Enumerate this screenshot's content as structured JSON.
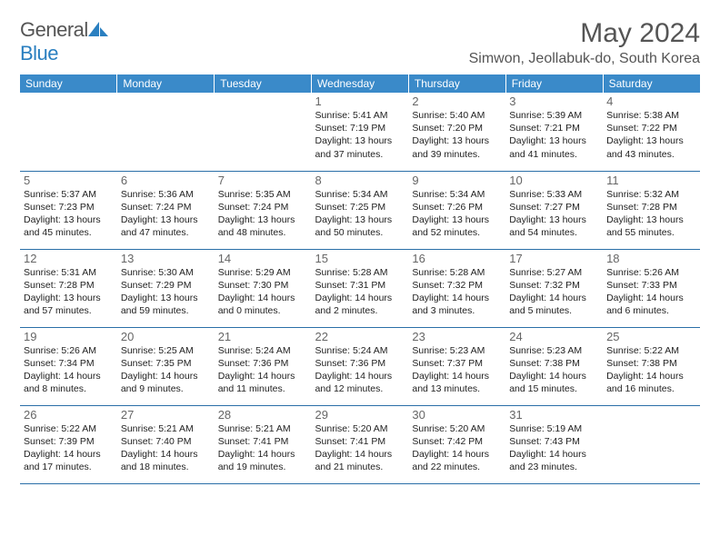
{
  "logo": {
    "part1": "General",
    "part2": "Blue"
  },
  "header": {
    "month_title": "May 2024",
    "location": "Simwon, Jeollabuk-do, South Korea"
  },
  "colors": {
    "header_bg": "#3a8ac9",
    "header_text": "#ffffff",
    "rule": "#2a6fa8",
    "title_color": "#555555",
    "text_color": "#222222",
    "daynum_color": "#666666"
  },
  "weekdays": [
    "Sunday",
    "Monday",
    "Tuesday",
    "Wednesday",
    "Thursday",
    "Friday",
    "Saturday"
  ],
  "weeks": [
    [
      {
        "empty": true
      },
      {
        "empty": true
      },
      {
        "empty": true
      },
      {
        "n": "1",
        "sr": "5:41 AM",
        "ss": "7:19 PM",
        "dl": "13 hours and 37 minutes."
      },
      {
        "n": "2",
        "sr": "5:40 AM",
        "ss": "7:20 PM",
        "dl": "13 hours and 39 minutes."
      },
      {
        "n": "3",
        "sr": "5:39 AM",
        "ss": "7:21 PM",
        "dl": "13 hours and 41 minutes."
      },
      {
        "n": "4",
        "sr": "5:38 AM",
        "ss": "7:22 PM",
        "dl": "13 hours and 43 minutes."
      }
    ],
    [
      {
        "n": "5",
        "sr": "5:37 AM",
        "ss": "7:23 PM",
        "dl": "13 hours and 45 minutes."
      },
      {
        "n": "6",
        "sr": "5:36 AM",
        "ss": "7:24 PM",
        "dl": "13 hours and 47 minutes."
      },
      {
        "n": "7",
        "sr": "5:35 AM",
        "ss": "7:24 PM",
        "dl": "13 hours and 48 minutes."
      },
      {
        "n": "8",
        "sr": "5:34 AM",
        "ss": "7:25 PM",
        "dl": "13 hours and 50 minutes."
      },
      {
        "n": "9",
        "sr": "5:34 AM",
        "ss": "7:26 PM",
        "dl": "13 hours and 52 minutes."
      },
      {
        "n": "10",
        "sr": "5:33 AM",
        "ss": "7:27 PM",
        "dl": "13 hours and 54 minutes."
      },
      {
        "n": "11",
        "sr": "5:32 AM",
        "ss": "7:28 PM",
        "dl": "13 hours and 55 minutes."
      }
    ],
    [
      {
        "n": "12",
        "sr": "5:31 AM",
        "ss": "7:28 PM",
        "dl": "13 hours and 57 minutes."
      },
      {
        "n": "13",
        "sr": "5:30 AM",
        "ss": "7:29 PM",
        "dl": "13 hours and 59 minutes."
      },
      {
        "n": "14",
        "sr": "5:29 AM",
        "ss": "7:30 PM",
        "dl": "14 hours and 0 minutes."
      },
      {
        "n": "15",
        "sr": "5:28 AM",
        "ss": "7:31 PM",
        "dl": "14 hours and 2 minutes."
      },
      {
        "n": "16",
        "sr": "5:28 AM",
        "ss": "7:32 PM",
        "dl": "14 hours and 3 minutes."
      },
      {
        "n": "17",
        "sr": "5:27 AM",
        "ss": "7:32 PM",
        "dl": "14 hours and 5 minutes."
      },
      {
        "n": "18",
        "sr": "5:26 AM",
        "ss": "7:33 PM",
        "dl": "14 hours and 6 minutes."
      }
    ],
    [
      {
        "n": "19",
        "sr": "5:26 AM",
        "ss": "7:34 PM",
        "dl": "14 hours and 8 minutes."
      },
      {
        "n": "20",
        "sr": "5:25 AM",
        "ss": "7:35 PM",
        "dl": "14 hours and 9 minutes."
      },
      {
        "n": "21",
        "sr": "5:24 AM",
        "ss": "7:36 PM",
        "dl": "14 hours and 11 minutes."
      },
      {
        "n": "22",
        "sr": "5:24 AM",
        "ss": "7:36 PM",
        "dl": "14 hours and 12 minutes."
      },
      {
        "n": "23",
        "sr": "5:23 AM",
        "ss": "7:37 PM",
        "dl": "14 hours and 13 minutes."
      },
      {
        "n": "24",
        "sr": "5:23 AM",
        "ss": "7:38 PM",
        "dl": "14 hours and 15 minutes."
      },
      {
        "n": "25",
        "sr": "5:22 AM",
        "ss": "7:38 PM",
        "dl": "14 hours and 16 minutes."
      }
    ],
    [
      {
        "n": "26",
        "sr": "5:22 AM",
        "ss": "7:39 PM",
        "dl": "14 hours and 17 minutes."
      },
      {
        "n": "27",
        "sr": "5:21 AM",
        "ss": "7:40 PM",
        "dl": "14 hours and 18 minutes."
      },
      {
        "n": "28",
        "sr": "5:21 AM",
        "ss": "7:41 PM",
        "dl": "14 hours and 19 minutes."
      },
      {
        "n": "29",
        "sr": "5:20 AM",
        "ss": "7:41 PM",
        "dl": "14 hours and 21 minutes."
      },
      {
        "n": "30",
        "sr": "5:20 AM",
        "ss": "7:42 PM",
        "dl": "14 hours and 22 minutes."
      },
      {
        "n": "31",
        "sr": "5:19 AM",
        "ss": "7:43 PM",
        "dl": "14 hours and 23 minutes."
      },
      {
        "empty": true
      }
    ]
  ],
  "labels": {
    "sunrise": "Sunrise: ",
    "sunset": "Sunset: ",
    "daylight": "Daylight: "
  }
}
